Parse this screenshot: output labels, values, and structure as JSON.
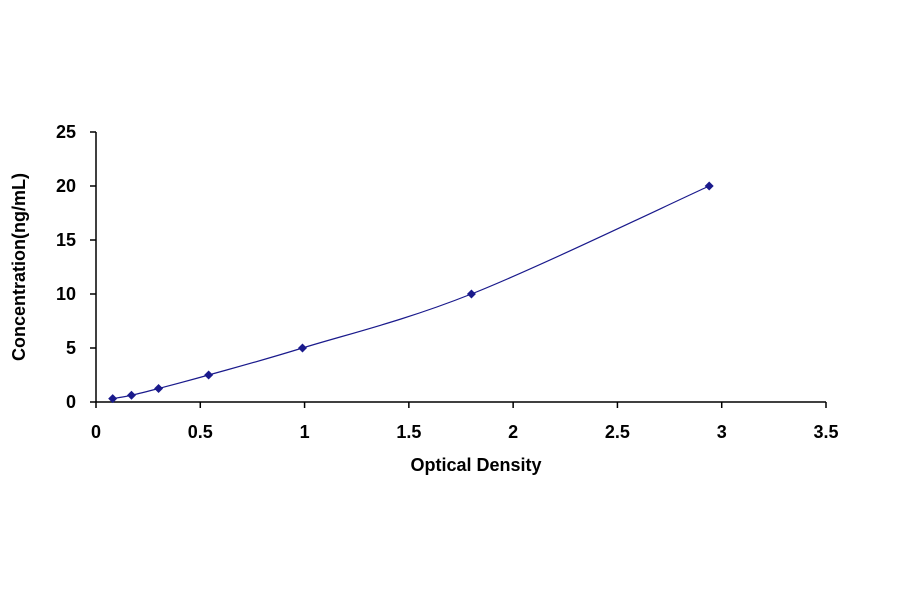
{
  "chart_data": {
    "type": "scatter",
    "title": "",
    "xlabel": "Optical Density",
    "ylabel": "Concentration(ng/mL)",
    "xlim": [
      0,
      3.5
    ],
    "ylim": [
      0,
      25
    ],
    "x_ticks": [
      "0",
      "0.5",
      "1",
      "1.5",
      "2",
      "2.5",
      "3",
      "3.5"
    ],
    "y_ticks": [
      "0",
      "5",
      "10",
      "15",
      "20",
      "25"
    ],
    "grid": false,
    "legend": "none",
    "marker": "diamond",
    "color": "#1a1a8c",
    "series": [
      {
        "x": [
          0.08,
          0.17,
          0.3,
          0.54,
          0.99,
          1.8,
          2.94
        ],
        "y": [
          0.313,
          0.625,
          1.25,
          2.5,
          5,
          10,
          20
        ]
      }
    ]
  }
}
